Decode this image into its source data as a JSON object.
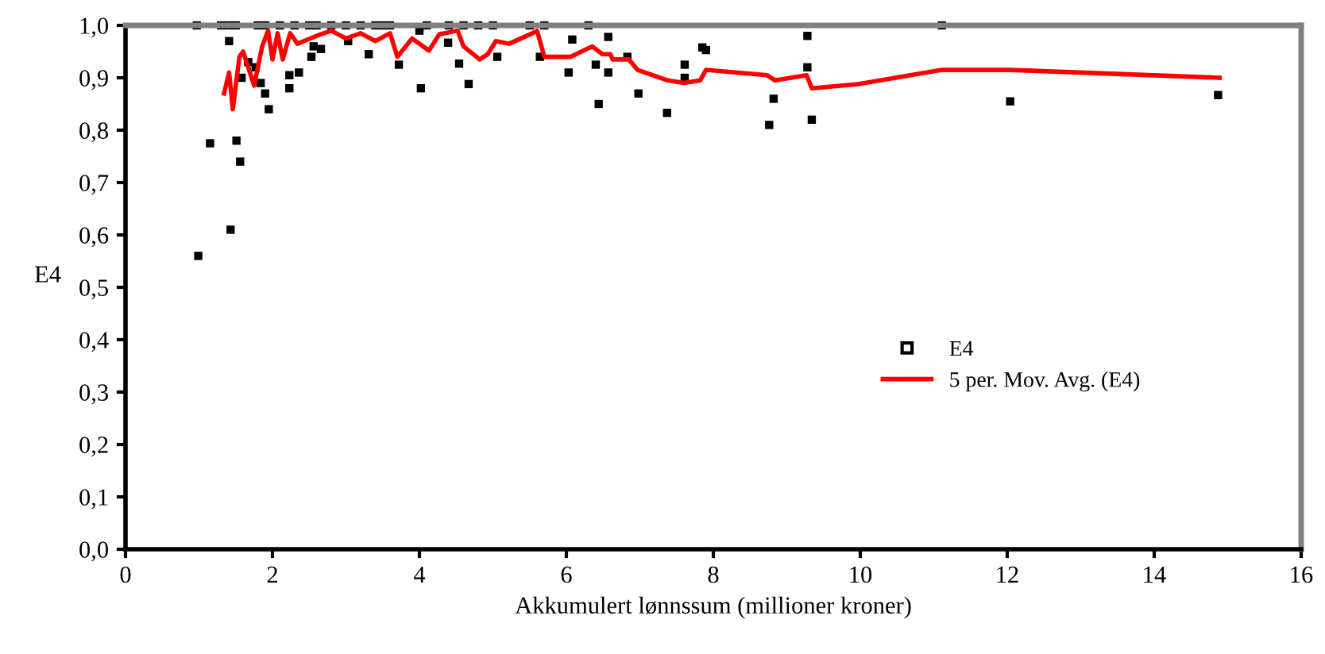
{
  "chart_data": {
    "type": "scatter",
    "xlabel": "Akkumulert lønnssum (millioner kroner)",
    "ylabel": "E4",
    "xlim": [
      0,
      16
    ],
    "ylim": [
      0,
      1
    ],
    "xticks": [
      0,
      2,
      4,
      6,
      8,
      10,
      12,
      14,
      16
    ],
    "yticks": [
      {
        "value": 0,
        "label": "0,0"
      },
      {
        "value": 0.1,
        "label": "0,1"
      },
      {
        "value": 0.2,
        "label": "0,2"
      },
      {
        "value": 0.3,
        "label": "0,3"
      },
      {
        "value": 0.4,
        "label": "0,4"
      },
      {
        "value": 0.5,
        "label": "0,5"
      },
      {
        "value": 0.6,
        "label": "0,6"
      },
      {
        "value": 0.7,
        "label": "0,7"
      },
      {
        "value": 0.8,
        "label": "0,8"
      },
      {
        "value": 0.9,
        "label": "0,9"
      },
      {
        "value": 1,
        "label": "1,0"
      }
    ],
    "grid": false,
    "legend": "center right",
    "marker": "square",
    "series": [
      {
        "name": "E4",
        "color": "#000000",
        "x": [
          0.97,
          0.99,
          1.43,
          1.15,
          1.51,
          1.56,
          1.95,
          1.41,
          2.53,
          2.23,
          2.36,
          2.23,
          1.84,
          1.9,
          1.58,
          1.67,
          1.77,
          2.66,
          2.56,
          3.03,
          3.31,
          3.72,
          4.02,
          4.0,
          4.39,
          4.54,
          4.67,
          5.06,
          6.08,
          6.57,
          5.64,
          6.03,
          6.4,
          6.57,
          6.44,
          6.83,
          6.98,
          7.37,
          7.61,
          7.61,
          7.85,
          7.9,
          8.82,
          8.76,
          9.28,
          9.28,
          9.34,
          11.11,
          12.04,
          14.87,
          1.3,
          1.4,
          1.5,
          1.8,
          1.9,
          2.1,
          2.3,
          2.5,
          2.6,
          2.8,
          3.0,
          3.2,
          3.4,
          3.5,
          3.6,
          4.1,
          4.4,
          4.6,
          4.8,
          5.0,
          5.5,
          5.7,
          6.3
        ],
        "values": [
          1.0,
          0.56,
          0.61,
          0.775,
          0.78,
          0.74,
          0.84,
          0.97,
          0.94,
          0.905,
          0.91,
          0.88,
          0.89,
          0.87,
          0.9,
          0.93,
          0.92,
          0.955,
          0.96,
          0.97,
          0.945,
          0.925,
          0.88,
          0.99,
          0.967,
          0.927,
          0.888,
          0.94,
          0.973,
          0.978,
          0.94,
          0.91,
          0.925,
          0.91,
          0.85,
          0.94,
          0.87,
          0.833,
          0.925,
          0.9,
          0.958,
          0.953,
          0.86,
          0.81,
          0.98,
          0.92,
          0.82,
          1.0,
          0.855,
          0.867,
          1.0,
          1.0,
          1.0,
          1.0,
          1.0,
          1.0,
          1.0,
          1.0,
          1.0,
          1.0,
          1.0,
          1.0,
          1.0,
          1.0,
          1.0,
          1.0,
          1.0,
          1.0,
          1.0,
          1.0,
          1.0,
          1.0,
          1.0
        ]
      },
      {
        "name": "5 per. Mov. Avg. (E4)",
        "type": "line",
        "color": "#ff0000",
        "marker": "none",
        "line_style": "solid",
        "x": [
          1.34,
          1.41,
          1.46,
          1.55,
          1.6,
          1.66,
          1.75,
          1.86,
          1.94,
          2.0,
          2.07,
          2.14,
          2.24,
          2.34,
          2.6,
          2.8,
          3.0,
          3.2,
          3.4,
          3.6,
          3.7,
          3.9,
          4.13,
          4.27,
          4.52,
          4.6,
          4.82,
          4.93,
          5.04,
          5.22,
          5.54,
          5.6,
          5.7,
          6.06,
          6.35,
          6.49,
          6.6,
          6.63,
          6.85,
          6.97,
          7.38,
          7.6,
          7.82,
          7.9,
          8.73,
          8.84,
          9.27,
          9.34,
          9.97,
          11.11,
          12.05,
          14.89
        ],
        "values": [
          0.87,
          0.91,
          0.84,
          0.94,
          0.95,
          0.925,
          0.885,
          0.96,
          0.99,
          0.935,
          0.985,
          0.935,
          0.985,
          0.965,
          0.98,
          0.99,
          0.975,
          0.985,
          0.97,
          0.985,
          0.94,
          0.975,
          0.952,
          0.983,
          0.99,
          0.96,
          0.935,
          0.945,
          0.97,
          0.965,
          0.985,
          0.99,
          0.94,
          0.94,
          0.96,
          0.945,
          0.945,
          0.935,
          0.935,
          0.915,
          0.895,
          0.89,
          0.895,
          0.915,
          0.905,
          0.895,
          0.905,
          0.88,
          0.888,
          0.915,
          0.915,
          0.9
        ]
      }
    ]
  }
}
